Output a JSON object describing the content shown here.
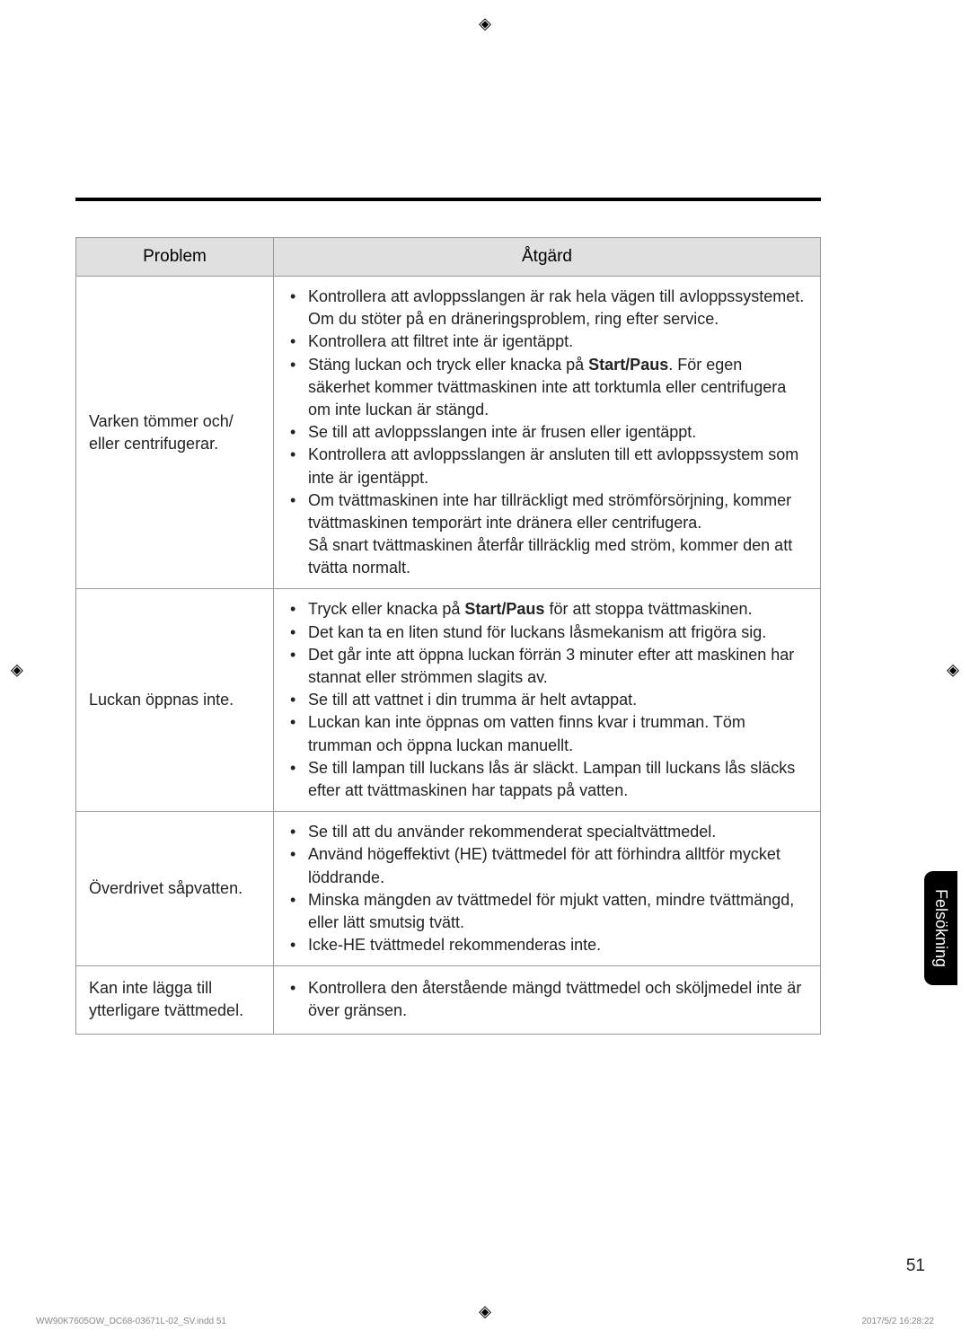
{
  "table": {
    "headers": {
      "problem": "Problem",
      "action": "Åtgärd"
    },
    "rows": [
      {
        "problem": "Varken tömmer och/ eller centrifugerar.",
        "actions": [
          {
            "text": "Kontrollera att avloppsslangen är rak hela vägen till avloppssystemet. Om du stöter på en dräneringsproblem, ring efter service."
          },
          {
            "text": "Kontrollera att filtret inte är igentäppt."
          },
          {
            "pre": "Stäng luckan och tryck eller knacka på ",
            "bold": "Start/Paus",
            "post": ". För egen säkerhet kommer tvättmaskinen inte att torktumla eller centrifugera om inte luckan är stängd."
          },
          {
            "text": "Se till att avloppsslangen inte är frusen eller igentäppt."
          },
          {
            "text": "Kontrollera att avloppsslangen är ansluten till ett avloppssystem som inte är igentäppt."
          },
          {
            "text": "Om tvättmaskinen inte har tillräckligt med strömförsörjning, kommer tvättmaskinen temporärt inte dränera eller centrifugera.",
            "cont": "Så snart tvättmaskinen återfår tillräcklig med ström, kommer den att tvätta normalt."
          }
        ]
      },
      {
        "problem": "Luckan öppnas inte.",
        "actions": [
          {
            "pre": "Tryck eller knacka på ",
            "bold": "Start/Paus",
            "post": " för att stoppa tvättmaskinen."
          },
          {
            "text": "Det kan ta en liten stund för luckans låsmekanism att frigöra sig."
          },
          {
            "text": "Det går inte att öppna luckan förrän 3 minuter efter att maskinen har stannat eller strömmen slagits av."
          },
          {
            "text": "Se till att vattnet i din trumma är helt avtappat."
          },
          {
            "text": "Luckan kan inte öppnas om vatten finns kvar i trumman. Töm trumman och öppna luckan manuellt."
          },
          {
            "text": "Se till lampan till luckans lås är släckt. Lampan till luckans lås släcks efter att tvättmaskinen har tappats på vatten."
          }
        ]
      },
      {
        "problem": "Överdrivet såpvatten.",
        "actions": [
          {
            "text": "Se till att du använder rekommenderat specialtvättmedel."
          },
          {
            "text": "Använd högeffektivt (HE) tvättmedel för att förhindra alltför mycket löddrande."
          },
          {
            "text": "Minska mängden av tvättmedel för mjukt vatten, mindre tvättmängd, eller lätt smutsig tvätt."
          },
          {
            "text": "Icke-HE tvättmedel rekommenderas inte."
          }
        ]
      },
      {
        "problem": "Kan inte lägga till ytterligare tvättmedel.",
        "actions": [
          {
            "text": "Kontrollera den återstående mängd tvättmedel och sköljmedel inte är över gränsen."
          }
        ]
      }
    ]
  },
  "sideTab": "Felsökning",
  "pageNumber": "51",
  "footerLeft": "WW90K7605OW_DC68-03671L-02_SV.indd   51",
  "footerRight": "2017/5/2   16:28:22"
}
